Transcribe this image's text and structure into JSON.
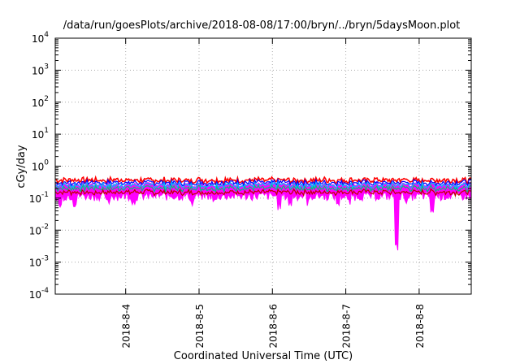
{
  "chart_data": {
    "type": "line",
    "title": "/data/run/goesPlots/archive/2018-08-08/17:00/bryn/../bryn/5daysMoon.plot",
    "xlabel": "Coordinated Universal Time (UTC)",
    "ylabel": "cGy/day",
    "yscale": "log",
    "ylim": [
      0.0001,
      10000
    ],
    "xlim_days": [
      "2018-08-03 01:00",
      "2018-08-08 18:00"
    ],
    "grid": true,
    "y_ticks": [
      {
        "value": 0.0001,
        "base": "10",
        "exp": "-4"
      },
      {
        "value": 0.001,
        "base": "10",
        "exp": "-3"
      },
      {
        "value": 0.01,
        "base": "10",
        "exp": "-2"
      },
      {
        "value": 0.1,
        "base": "10",
        "exp": "-1"
      },
      {
        "value": 1,
        "base": "10",
        "exp": "0"
      },
      {
        "value": 10,
        "base": "10",
        "exp": "1"
      },
      {
        "value": 100,
        "base": "10",
        "exp": "2"
      },
      {
        "value": 1000,
        "base": "10",
        "exp": "3"
      },
      {
        "value": 10000,
        "base": "10",
        "exp": "4"
      }
    ],
    "x_ticks": [
      {
        "label": "2018-8-4",
        "day": 1.0
      },
      {
        "label": "2018-8-5",
        "day": 2.0
      },
      {
        "label": "2018-8-6",
        "day": 3.0
      },
      {
        "label": "2018-8-7",
        "day": 4.0
      },
      {
        "label": "2018-8-8",
        "day": 5.0
      }
    ],
    "series": [
      {
        "color": "#ff00ff",
        "base": 0.15,
        "role": "fill"
      },
      {
        "color": "#ff0000",
        "base": 0.36
      },
      {
        "color": "#0000ff",
        "base": 0.3
      },
      {
        "color": "#00bbff",
        "base": 0.25
      },
      {
        "color": "#00c080",
        "base": 0.2
      },
      {
        "color": "#c00000",
        "base": 0.15
      }
    ],
    "dips": [
      {
        "day": 0.1,
        "min": 0.075
      },
      {
        "day": 0.3,
        "min": 0.09
      },
      {
        "day": 0.75,
        "min": 0.09
      },
      {
        "day": 1.1,
        "min": 0.095
      },
      {
        "day": 1.9,
        "min": 0.09
      },
      {
        "day": 2.2,
        "min": 0.1
      },
      {
        "day": 3.1,
        "min": 0.075
      },
      {
        "day": 3.25,
        "min": 0.085
      },
      {
        "day": 3.5,
        "min": 0.1
      },
      {
        "day": 3.9,
        "min": 0.09
      },
      {
        "day": 4.05,
        "min": 0.095
      },
      {
        "day": 4.7,
        "min": 0.004
      },
      {
        "day": 4.85,
        "min": 0.1
      },
      {
        "day": 5.17,
        "min": 0.045
      }
    ]
  }
}
